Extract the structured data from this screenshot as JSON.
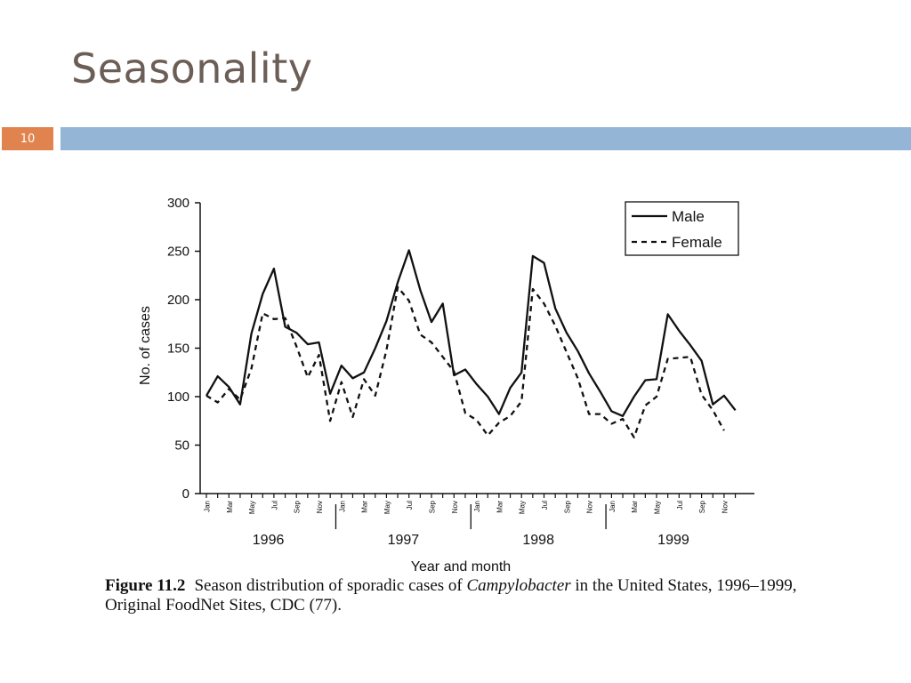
{
  "slide": {
    "title": "Seasonality",
    "number": "10"
  },
  "caption": {
    "figure_number": "Figure 11.2",
    "text_before": "Season distribution of sporadic cases of ",
    "organism": "Campylobacter",
    "text_after": " in the United States, 1996–1999, Original FoodNet Sites, CDC (77)."
  },
  "colors": {
    "accent_orange": "#e0834e",
    "accent_blue": "#94b5d5",
    "title_gray": "#6b5e57"
  },
  "chart_data": {
    "type": "line",
    "title": "",
    "xlabel": "Year and month",
    "ylabel": "No. of cases",
    "ylim": [
      0,
      300
    ],
    "yticks": [
      0,
      50,
      100,
      150,
      200,
      250,
      300
    ],
    "month_labels": [
      "Jan",
      "Mar",
      "May",
      "Jul",
      "Sep",
      "Nov"
    ],
    "years": [
      "1996",
      "1997",
      "1998",
      "1999"
    ],
    "legend_position": "top-right",
    "series": [
      {
        "name": "Male",
        "style": "solid",
        "values": [
          101,
          121,
          110,
          92,
          165,
          206,
          232,
          172,
          166,
          154,
          156,
          103,
          132,
          119,
          125,
          150,
          178,
          218,
          251,
          210,
          177,
          196,
          122,
          128,
          113,
          100,
          82,
          109,
          125,
          245,
          238,
          191,
          166,
          147,
          124,
          105,
          85,
          80,
          100,
          117,
          118,
          185,
          168,
          153,
          137,
          92,
          101,
          86
        ]
      },
      {
        "name": "Female",
        "style": "dashed",
        "values": [
          101,
          94,
          108,
          97,
          129,
          186,
          180,
          181,
          152,
          120,
          143,
          75,
          115,
          79,
          118,
          101,
          148,
          213,
          199,
          164,
          156,
          141,
          126,
          83,
          76,
          60,
          73,
          80,
          95,
          211,
          196,
          173,
          146,
          119,
          82,
          82,
          72,
          77,
          58,
          91,
          100,
          139,
          140,
          141,
          102,
          86,
          65,
          null
        ]
      }
    ]
  }
}
